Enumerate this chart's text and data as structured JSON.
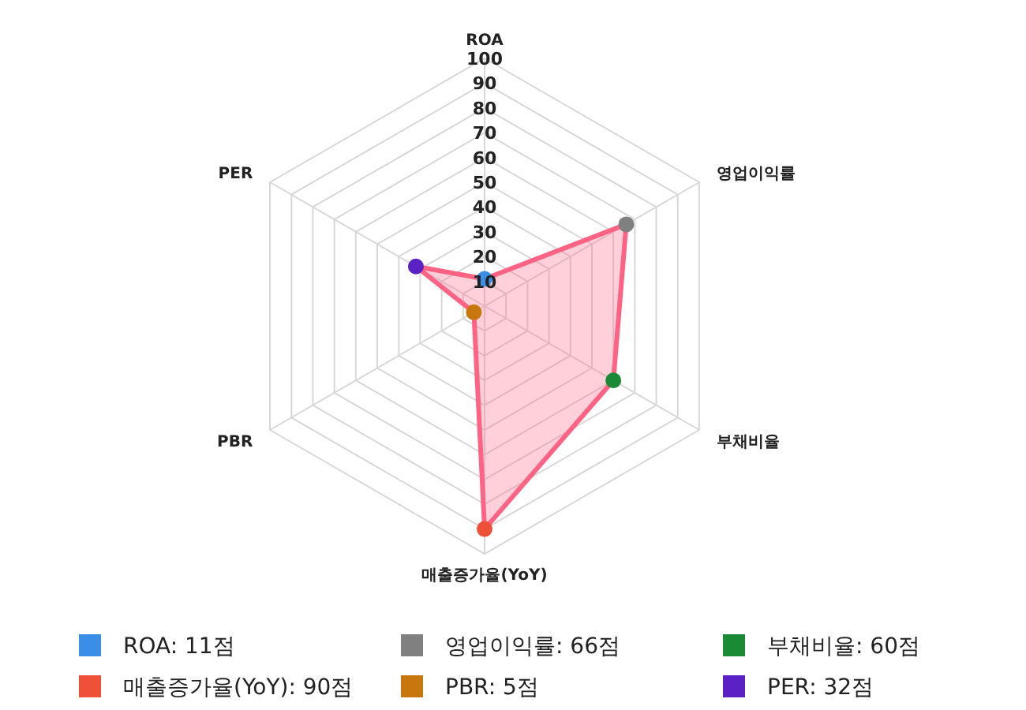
{
  "chart_data": {
    "type": "radar",
    "categories": [
      "ROA",
      "영업이익률",
      "부채비율",
      "매출증가율(YoY)",
      "PBR",
      "PER"
    ],
    "series": [
      {
        "color": "#ff6384",
        "values": [
          11,
          66,
          60,
          90,
          5,
          32
        ],
        "colors": [
          "#3a8ee6",
          "#808080",
          "#1a8a36",
          "#ee5038",
          "#c8760e",
          "#5a22c4"
        ]
      }
    ],
    "ylim": [
      0,
      100
    ],
    "yticks": [
      10,
      20,
      30,
      40,
      50,
      60,
      70,
      80,
      90,
      100
    ],
    "grid": true,
    "marker": "circle",
    "annotations": [
      "ROA: 11점",
      "영업이익률: 66점",
      "부채비율: 60점",
      "매출증가율(YoY): 90점",
      "PBR: 5점",
      "PER: 32점"
    ]
  }
}
